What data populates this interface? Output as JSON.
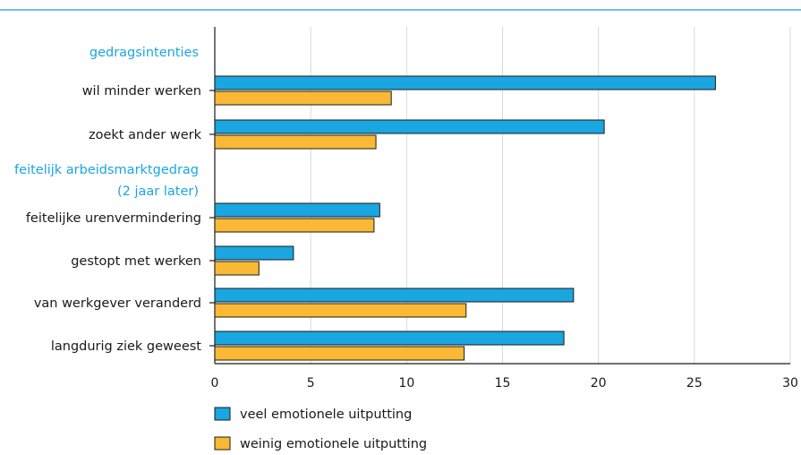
{
  "chart_data": {
    "type": "bar",
    "orientation": "horizontal",
    "title": "",
    "xlabel": "",
    "ylabel": "",
    "xlim": [
      0,
      30
    ],
    "x_ticks": [
      0,
      5,
      10,
      15,
      20,
      25,
      30
    ],
    "grid": true,
    "legend_position": "bottom-left",
    "groups": [
      {
        "label": "gedragsintenties",
        "categories": [
          "wil minder werken",
          "zoekt ander werk"
        ]
      },
      {
        "label": "feitelijk arbeidsmarktgedrag",
        "label_line2": "(2 jaar later)",
        "categories": [
          "feitelijke urenvermindering",
          "gestopt met werken",
          "van werkgever veranderd",
          "langdurig ziek geweest"
        ]
      }
    ],
    "categories": [
      "wil minder werken",
      "zoekt ander werk",
      "feitelijke urenvermindering",
      "gestopt met werken",
      "van werkgever veranderd",
      "langdurig ziek geweest"
    ],
    "series": [
      {
        "name": "veel emotionele uitputting",
        "color": "#1aa6e0",
        "values": [
          26.1,
          20.3,
          8.6,
          4.1,
          18.7,
          18.2
        ]
      },
      {
        "name": "weinig emotionele uitputting",
        "color": "#f9b934",
        "values": [
          9.2,
          8.4,
          8.3,
          2.3,
          13.1,
          13.0
        ]
      }
    ]
  }
}
